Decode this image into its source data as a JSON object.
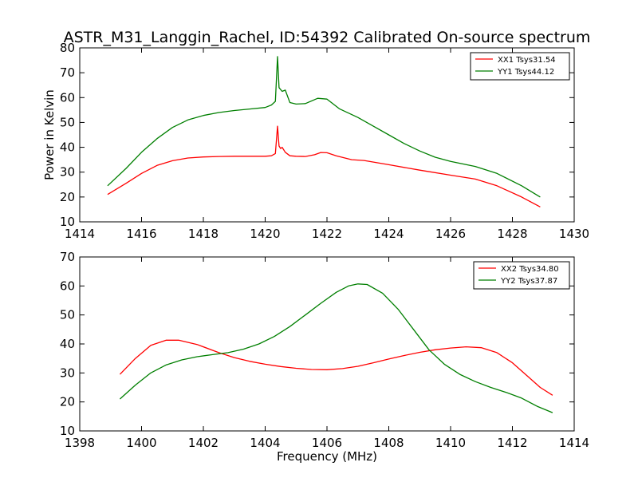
{
  "title": "ASTR_M31_Langgin_Rachel, ID:54392 Calibrated On-source spectrum",
  "chart_data": [
    {
      "type": "line",
      "title": "ASTR_M31_Langgin_Rachel, ID:54392 Calibrated On-source spectrum",
      "xlabel": "",
      "ylabel": "Power in Kelvin",
      "xlim": [
        1414,
        1430
      ],
      "ylim": [
        10,
        80
      ],
      "xticks": [
        1414,
        1416,
        1418,
        1420,
        1422,
        1424,
        1426,
        1428,
        1430
      ],
      "yticks": [
        10,
        20,
        30,
        40,
        50,
        60,
        70,
        80
      ],
      "grid": false,
      "legend": "top-right",
      "series": [
        {
          "name": "XX1 Tsys31.54",
          "color": "#ff0000",
          "points": [
            [
              1414.9,
              21.0
            ],
            [
              1415.5,
              25.5
            ],
            [
              1416.0,
              29.5
            ],
            [
              1416.5,
              32.7
            ],
            [
              1417.0,
              34.6
            ],
            [
              1417.5,
              35.7
            ],
            [
              1418.0,
              36.1
            ],
            [
              1418.5,
              36.3
            ],
            [
              1419.0,
              36.4
            ],
            [
              1419.5,
              36.4
            ],
            [
              1420.0,
              36.4
            ],
            [
              1420.2,
              36.6
            ],
            [
              1420.33,
              37.5
            ],
            [
              1420.4,
              48.5
            ],
            [
              1420.45,
              40.5
            ],
            [
              1420.5,
              39.5
            ],
            [
              1420.55,
              40.0
            ],
            [
              1420.65,
              38.0
            ],
            [
              1420.8,
              36.6
            ],
            [
              1421.0,
              36.4
            ],
            [
              1421.3,
              36.3
            ],
            [
              1421.6,
              37.0
            ],
            [
              1421.8,
              37.9
            ],
            [
              1422.0,
              37.8
            ],
            [
              1422.3,
              36.6
            ],
            [
              1422.8,
              35.0
            ],
            [
              1423.2,
              34.7
            ],
            [
              1424.0,
              33.0
            ],
            [
              1425.0,
              30.8
            ],
            [
              1426.0,
              28.8
            ],
            [
              1426.8,
              27.2
            ],
            [
              1427.5,
              24.5
            ],
            [
              1428.3,
              20.0
            ],
            [
              1428.9,
              16.0
            ]
          ]
        },
        {
          "name": "YY1 Tsys44.12",
          "color": "#007f00",
          "points": [
            [
              1414.9,
              24.5
            ],
            [
              1415.5,
              31.5
            ],
            [
              1416.0,
              38.0
            ],
            [
              1416.5,
              43.5
            ],
            [
              1417.0,
              48.0
            ],
            [
              1417.5,
              51.0
            ],
            [
              1418.0,
              52.8
            ],
            [
              1418.5,
              54.0
            ],
            [
              1419.0,
              54.8
            ],
            [
              1419.5,
              55.4
            ],
            [
              1420.0,
              56.0
            ],
            [
              1420.2,
              57.0
            ],
            [
              1420.33,
              58.5
            ],
            [
              1420.4,
              76.5
            ],
            [
              1420.45,
              64.0
            ],
            [
              1420.55,
              62.5
            ],
            [
              1420.65,
              63.0
            ],
            [
              1420.8,
              58.0
            ],
            [
              1421.0,
              57.4
            ],
            [
              1421.3,
              57.6
            ],
            [
              1421.7,
              59.7
            ],
            [
              1422.0,
              59.4
            ],
            [
              1422.4,
              55.5
            ],
            [
              1423.0,
              52.0
            ],
            [
              1423.5,
              48.5
            ],
            [
              1424.0,
              45.0
            ],
            [
              1424.5,
              41.5
            ],
            [
              1425.0,
              38.5
            ],
            [
              1425.5,
              36.0
            ],
            [
              1426.0,
              34.3
            ],
            [
              1426.8,
              32.3
            ],
            [
              1427.5,
              29.5
            ],
            [
              1428.3,
              24.5
            ],
            [
              1428.9,
              20.0
            ]
          ]
        }
      ]
    },
    {
      "type": "line",
      "title": "",
      "xlabel": "Frequency (MHz)",
      "ylabel": "",
      "xlim": [
        1398,
        1414
      ],
      "ylim": [
        10,
        70
      ],
      "xticks": [
        1398,
        1400,
        1402,
        1404,
        1406,
        1408,
        1410,
        1412,
        1414
      ],
      "yticks": [
        10,
        20,
        30,
        40,
        50,
        60,
        70
      ],
      "grid": false,
      "legend": "top-right",
      "series": [
        {
          "name": "XX2 Tsys34.80",
          "color": "#ff0000",
          "points": [
            [
              1399.3,
              29.5
            ],
            [
              1399.8,
              35.0
            ],
            [
              1400.3,
              39.5
            ],
            [
              1400.8,
              41.3
            ],
            [
              1401.2,
              41.3
            ],
            [
              1401.8,
              39.8
            ],
            [
              1402.5,
              37.0
            ],
            [
              1403.0,
              35.3
            ],
            [
              1403.5,
              34.0
            ],
            [
              1404.0,
              33.0
            ],
            [
              1404.5,
              32.2
            ],
            [
              1405.0,
              31.6
            ],
            [
              1405.5,
              31.2
            ],
            [
              1406.0,
              31.1
            ],
            [
              1406.5,
              31.5
            ],
            [
              1407.0,
              32.3
            ],
            [
              1407.5,
              33.5
            ],
            [
              1408.0,
              34.8
            ],
            [
              1408.5,
              36.0
            ],
            [
              1409.0,
              37.1
            ],
            [
              1409.5,
              38.0
            ],
            [
              1410.0,
              38.6
            ],
            [
              1410.5,
              39.0
            ],
            [
              1411.0,
              38.7
            ],
            [
              1411.5,
              37.0
            ],
            [
              1412.0,
              33.5
            ],
            [
              1412.5,
              28.8
            ],
            [
              1412.9,
              25.0
            ],
            [
              1413.3,
              22.3
            ]
          ]
        },
        {
          "name": "YY2 Tsys37.87",
          "color": "#007f00",
          "points": [
            [
              1399.3,
              21.0
            ],
            [
              1399.8,
              25.8
            ],
            [
              1400.3,
              30.0
            ],
            [
              1400.8,
              32.8
            ],
            [
              1401.3,
              34.5
            ],
            [
              1401.8,
              35.6
            ],
            [
              1402.3,
              36.3
            ],
            [
              1402.8,
              37.0
            ],
            [
              1403.3,
              38.2
            ],
            [
              1403.8,
              40.0
            ],
            [
              1404.3,
              42.6
            ],
            [
              1404.8,
              46.0
            ],
            [
              1405.3,
              50.0
            ],
            [
              1405.8,
              54.0
            ],
            [
              1406.3,
              57.8
            ],
            [
              1406.7,
              60.0
            ],
            [
              1407.0,
              60.7
            ],
            [
              1407.3,
              60.5
            ],
            [
              1407.8,
              57.5
            ],
            [
              1408.3,
              52.0
            ],
            [
              1408.8,
              45.0
            ],
            [
              1409.3,
              38.0
            ],
            [
              1409.8,
              33.0
            ],
            [
              1410.3,
              29.5
            ],
            [
              1410.8,
              27.0
            ],
            [
              1411.3,
              25.0
            ],
            [
              1411.8,
              23.3
            ],
            [
              1412.3,
              21.3
            ],
            [
              1412.8,
              18.5
            ],
            [
              1413.3,
              16.3
            ]
          ]
        }
      ]
    }
  ]
}
